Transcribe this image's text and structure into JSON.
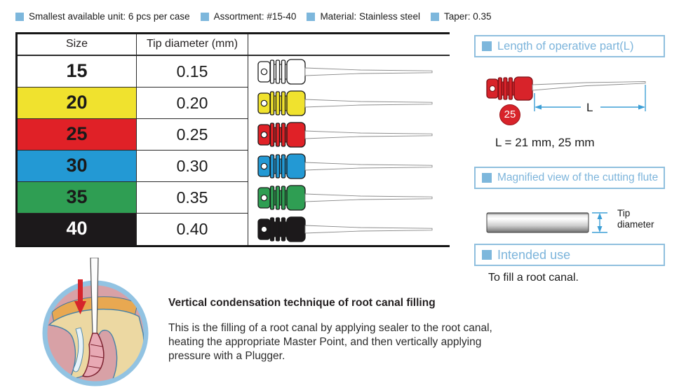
{
  "legend": {
    "items": [
      "Smallest available unit: 6 pcs per case",
      "Assortment: #15-40",
      "Material: Stainless steel",
      "Taper: 0.35"
    ]
  },
  "table": {
    "headers": {
      "size": "Size",
      "tip": "Tip diameter (mm)"
    },
    "rows": [
      {
        "size": "15",
        "tip": "0.15",
        "color": "#ffffff",
        "text": "#1a1a1a"
      },
      {
        "size": "20",
        "tip": "0.20",
        "color": "#f0e22e",
        "text": "#1a1a1a"
      },
      {
        "size": "25",
        "tip": "0.25",
        "color": "#e02127",
        "text": "#1a1a1a"
      },
      {
        "size": "30",
        "tip": "0.30",
        "color": "#2399d4",
        "text": "#1a1a1a"
      },
      {
        "size": "35",
        "tip": "0.35",
        "color": "#2f9e53",
        "text": "#1a1a1a"
      },
      {
        "size": "40",
        "tip": "0.40",
        "color": "#1c191b",
        "text": "#ffffff"
      }
    ]
  },
  "panels": {
    "length": {
      "title": "Length of operative part(L)",
      "dimension_label": "L",
      "badge": "25",
      "note": "L = 21 mm, 25 mm"
    },
    "flute": {
      "title": "Magnified view of the cutting flute",
      "dimension_label": "Tip diameter"
    },
    "use": {
      "title": "Intended use",
      "body": "To fill a root canal."
    }
  },
  "technique": {
    "title": "Vertical condensation technique of root canal filling",
    "body_lines": [
      "This is the filling of a root canal by applying sealer to the root canal,",
      "heating the appropriate Master Point, and then vertically applying",
      "pressure with a Plugger."
    ]
  },
  "colors": {
    "accent_text_blue": "#7cb4db",
    "box_border_blue": "#8fbfde",
    "legend_square_blue": "#7db7dc",
    "dimension_blue": "#3d9fd6",
    "badge_red": "#d8232a",
    "tooth_ring_blue": "#92c3e2",
    "tooth_gum_pink": "#d8a1a6"
  }
}
